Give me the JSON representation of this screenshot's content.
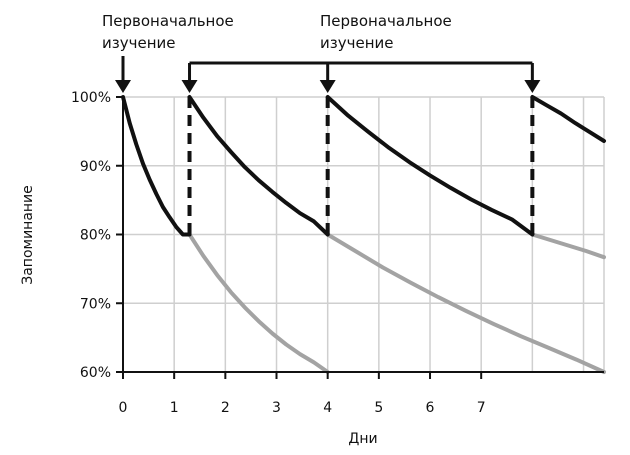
{
  "chart_data": {
    "type": "line",
    "title": "",
    "xlabel": "Дни",
    "ylabel": "Запоминание",
    "xlim": [
      0,
      9.4
    ],
    "ylim": [
      60,
      100
    ],
    "grid": true,
    "x_ticks": [
      {
        "value": 0,
        "label": "0"
      },
      {
        "value": 1,
        "label": "1"
      },
      {
        "value": 2,
        "label": "2"
      },
      {
        "value": 3,
        "label": "3"
      },
      {
        "value": 4,
        "label": "4"
      },
      {
        "value": 5,
        "label": "5"
      },
      {
        "value": 6,
        "label": "6"
      },
      {
        "value": 7,
        "label": "7"
      }
    ],
    "y_ticks": [
      {
        "value": 100,
        "label": "100%"
      },
      {
        "value": 90,
        "label": "90%"
      },
      {
        "value": 80,
        "label": "80%"
      },
      {
        "value": 70,
        "label": "70%"
      },
      {
        "value": 60,
        "label": "60%"
      }
    ],
    "annotations": {
      "initial_line1": "Первоначальное",
      "initial_line2": "изучение",
      "repeat_line1": "Первоначальное",
      "repeat_line2": "изучение"
    },
    "review_days": [
      1.3,
      4,
      8
    ],
    "series": [
      {
        "style": "black",
        "segments": [
          [
            [
              0,
              100
            ],
            [
              0.13,
              96.2
            ],
            [
              0.26,
              93.1
            ],
            [
              0.39,
              90.3
            ],
            [
              0.52,
              88.0
            ],
            [
              0.65,
              85.9
            ],
            [
              0.78,
              84.0
            ],
            [
              0.91,
              82.5
            ],
            [
              1.04,
              81.1
            ],
            [
              1.17,
              80.0
            ],
            [
              1.3,
              80.0
            ]
          ],
          [
            [
              1.3,
              100
            ],
            [
              1.57,
              97.0
            ],
            [
              1.84,
              94.3
            ],
            [
              2.11,
              92.0
            ],
            [
              2.38,
              89.8
            ],
            [
              2.65,
              87.9
            ],
            [
              2.92,
              86.2
            ],
            [
              3.19,
              84.6
            ],
            [
              3.46,
              83.1
            ],
            [
              3.73,
              81.9
            ],
            [
              4,
              80.0
            ]
          ],
          [
            [
              4,
              100
            ],
            [
              4.4,
              97.3
            ],
            [
              4.8,
              94.9
            ],
            [
              5.2,
              92.6
            ],
            [
              5.6,
              90.5
            ],
            [
              6.0,
              88.6
            ],
            [
              6.4,
              86.8
            ],
            [
              6.8,
              85.1
            ],
            [
              7.2,
              83.6
            ],
            [
              7.6,
              82.2
            ],
            [
              8,
              80.0
            ]
          ],
          [
            [
              8,
              100
            ],
            [
              8.28,
              98.8
            ],
            [
              8.56,
              97.6
            ],
            [
              8.84,
              96.2
            ],
            [
              9.12,
              94.9
            ],
            [
              9.4,
              93.6
            ]
          ]
        ]
      },
      {
        "style": "gray",
        "segments": [
          [
            [
              1.3,
              80
            ],
            [
              1.57,
              76.9
            ],
            [
              1.84,
              74.1
            ],
            [
              2.11,
              71.6
            ],
            [
              2.38,
              69.4
            ],
            [
              2.65,
              67.4
            ],
            [
              2.92,
              65.6
            ],
            [
              3.19,
              64.0
            ],
            [
              3.46,
              62.6
            ],
            [
              3.73,
              61.4
            ],
            [
              4,
              60
            ]
          ],
          [
            [
              4,
              80
            ],
            [
              4.54,
              77.6
            ],
            [
              5.08,
              75.2
            ],
            [
              5.62,
              73.0
            ],
            [
              6.16,
              70.9
            ],
            [
              6.7,
              68.9
            ],
            [
              7.24,
              67.0
            ],
            [
              7.78,
              65.2
            ],
            [
              8.32,
              63.5
            ],
            [
              8.86,
              61.8
            ],
            [
              9.4,
              60
            ]
          ],
          [
            [
              8,
              80
            ],
            [
              8.35,
              79.2
            ],
            [
              8.7,
              78.4
            ],
            [
              9.05,
              77.6
            ],
            [
              9.4,
              76.7
            ]
          ]
        ]
      }
    ]
  }
}
